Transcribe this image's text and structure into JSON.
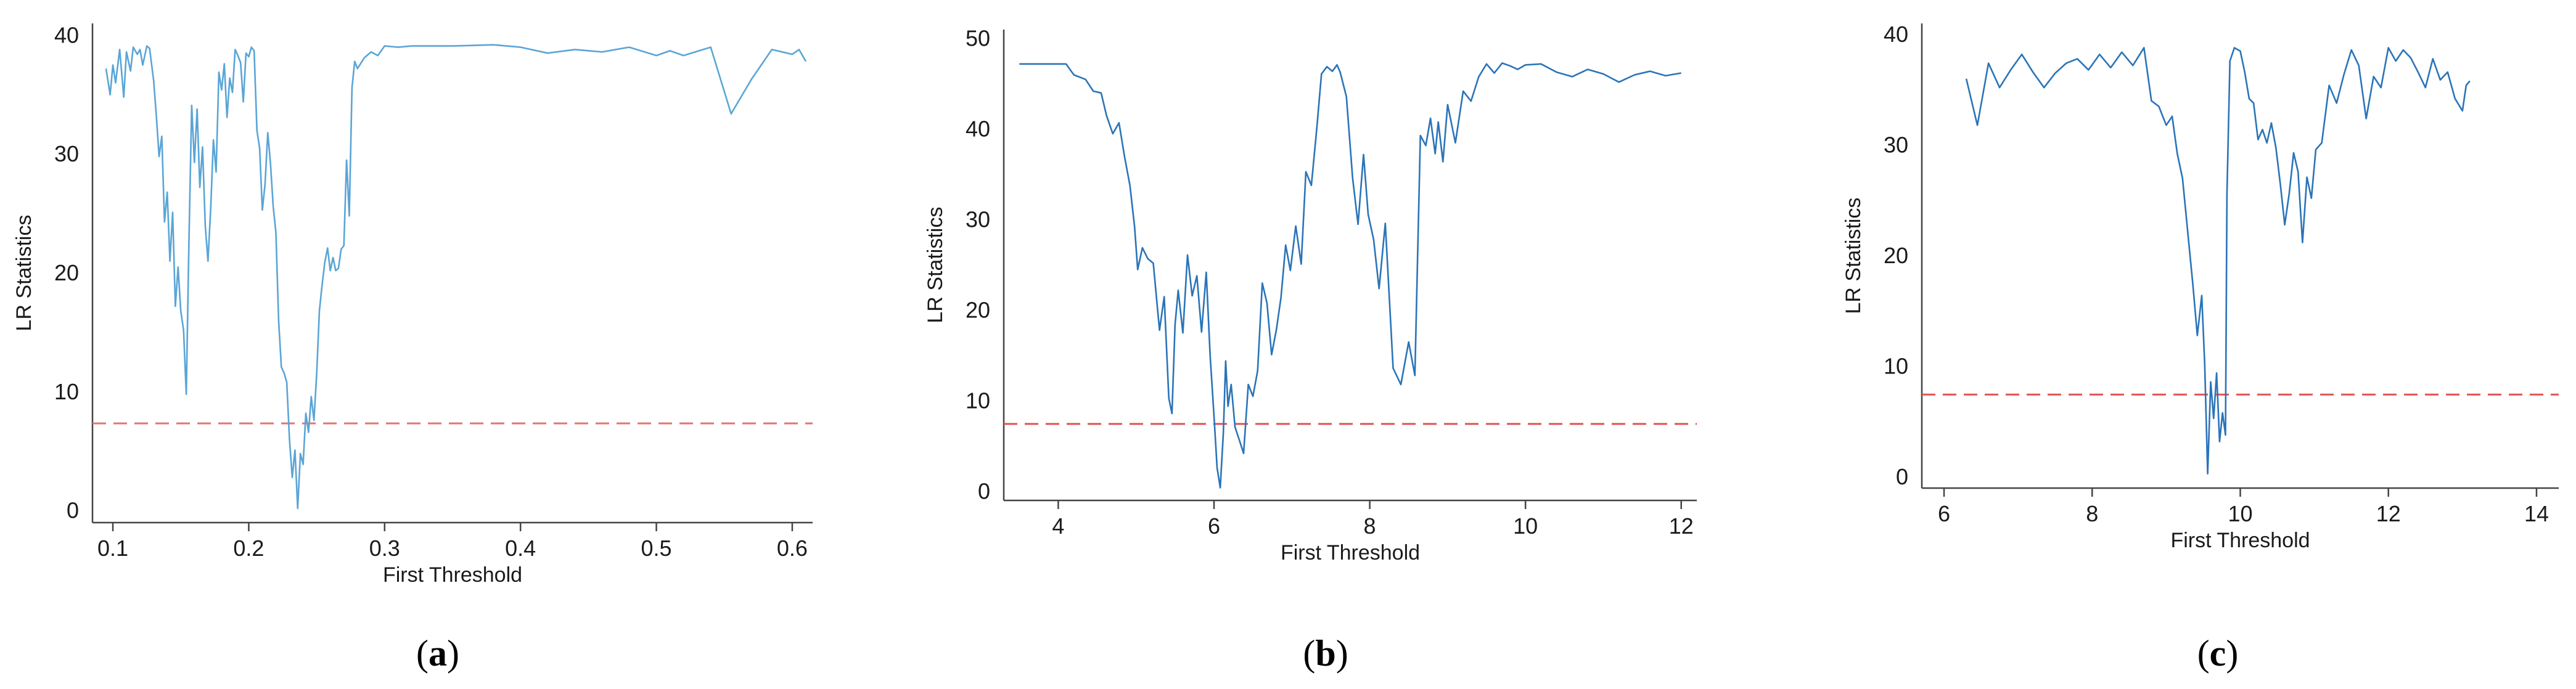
{
  "figure": {
    "panel_labels": [
      "(a)",
      "(b)",
      "(c)"
    ]
  },
  "chart_data": [
    {
      "type": "line",
      "panel": "(a)",
      "xlabel": "First Threshold",
      "ylabel": "LR Statistics",
      "xlim": [
        0.085,
        0.615
      ],
      "ylim": [
        -1,
        41
      ],
      "xticks": [
        0.1,
        0.2,
        0.3,
        0.4,
        0.5,
        0.6
      ],
      "xtick_labels": [
        "0.1",
        "0.2",
        "0.3",
        "0.4",
        "0.5",
        "0.6"
      ],
      "yticks": [
        0,
        10,
        20,
        30,
        40
      ],
      "ytick_labels": [
        "0",
        "10",
        "20",
        "30",
        "40"
      ],
      "line_color": "#5aa5d6",
      "reference_line": {
        "y": 7.35,
        "color": "#e57373",
        "style": "dashed"
      },
      "series": [
        {
          "x": [
            0.095,
            0.098,
            0.1,
            0.102,
            0.105,
            0.108,
            0.11,
            0.113,
            0.115,
            0.118,
            0.12,
            0.122,
            0.125,
            0.127,
            0.13,
            0.132,
            0.134,
            0.136,
            0.138,
            0.14,
            0.142,
            0.144,
            0.146,
            0.148,
            0.15,
            0.152,
            0.154,
            0.156,
            0.158,
            0.16,
            0.162,
            0.164,
            0.166,
            0.168,
            0.17,
            0.172,
            0.174,
            0.176,
            0.178,
            0.18,
            0.182,
            0.184,
            0.186,
            0.188,
            0.19,
            0.192,
            0.194,
            0.196,
            0.198,
            0.2,
            0.202,
            0.204,
            0.206,
            0.208,
            0.21,
            0.212,
            0.214,
            0.216,
            0.218,
            0.22,
            0.222,
            0.224,
            0.226,
            0.228,
            0.23,
            0.232,
            0.234,
            0.236,
            0.238,
            0.24,
            0.242,
            0.244,
            0.246,
            0.248,
            0.25,
            0.252,
            0.254,
            0.256,
            0.258,
            0.26,
            0.262,
            0.264,
            0.266,
            0.268,
            0.27,
            0.272,
            0.274,
            0.276,
            0.278,
            0.28,
            0.285,
            0.29,
            0.295,
            0.3,
            0.31,
            0.32,
            0.33,
            0.35,
            0.38,
            0.4,
            0.42,
            0.44,
            0.46,
            0.48,
            0.5,
            0.51,
            0.52,
            0.54,
            0.555,
            0.57,
            0.585,
            0.6,
            0.605,
            0.61
          ],
          "y": [
            37.2,
            35.0,
            37.5,
            36.0,
            38.8,
            34.8,
            38.6,
            37.0,
            39.0,
            38.4,
            38.8,
            37.5,
            39.1,
            38.9,
            36.2,
            33.2,
            29.8,
            31.5,
            24.3,
            26.8,
            21.0,
            25.1,
            17.2,
            20.5,
            16.8,
            15.2,
            9.8,
            22.8,
            34.1,
            29.3,
            33.8,
            27.2,
            30.6,
            24.0,
            21.0,
            25.4,
            31.2,
            28.5,
            36.9,
            35.4,
            37.6,
            33.1,
            36.4,
            35.2,
            38.8,
            38.3,
            37.7,
            34.4,
            38.5,
            38.2,
            39.0,
            38.7,
            32.0,
            30.5,
            25.3,
            27.5,
            31.8,
            29.2,
            25.6,
            23.4,
            16.0,
            12.1,
            11.6,
            10.8,
            6.0,
            2.8,
            5.1,
            0.2,
            4.8,
            3.9,
            8.2,
            6.6,
            9.6,
            7.6,
            11.5,
            16.8,
            19.0,
            20.9,
            22.1,
            20.2,
            21.3,
            20.2,
            20.4,
            22.0,
            22.3,
            29.5,
            24.8,
            35.6,
            37.8,
            37.2,
            38.1,
            38.6,
            38.3,
            39.1,
            39.0,
            39.1,
            39.1,
            39.1,
            39.2,
            39.0,
            38.5,
            38.8,
            38.6,
            39.0,
            38.3,
            38.7,
            38.3,
            39.0,
            33.4,
            36.3,
            38.8,
            38.4,
            38.8,
            37.8
          ]
        }
      ]
    },
    {
      "type": "line",
      "panel": "(b)",
      "xlabel": "First Threshold",
      "ylabel": "LR Statistics",
      "xlim": [
        3.3,
        12.2
      ],
      "ylim": [
        -1,
        51
      ],
      "xticks": [
        4,
        6,
        8,
        10,
        12
      ],
      "xtick_labels": [
        "4",
        "6",
        "8",
        "10",
        "12"
      ],
      "yticks": [
        0,
        10,
        20,
        30,
        40,
        50
      ],
      "ytick_labels": [
        "0",
        "10",
        "20",
        "30",
        "40",
        "50"
      ],
      "line_color": "#2a74b8",
      "reference_line": {
        "y": 7.45,
        "color": "#e05252",
        "style": "dashed"
      },
      "series": [
        {
          "x": [
            3.5,
            3.8,
            4.1,
            4.2,
            4.35,
            4.45,
            4.55,
            4.62,
            4.7,
            4.78,
            4.85,
            4.92,
            4.98,
            5.02,
            5.08,
            5.15,
            5.22,
            5.3,
            5.36,
            5.42,
            5.46,
            5.5,
            5.54,
            5.6,
            5.66,
            5.72,
            5.78,
            5.84,
            5.9,
            5.95,
            6.0,
            6.04,
            6.08,
            6.12,
            6.15,
            6.18,
            6.22,
            6.27,
            6.32,
            6.38,
            6.44,
            6.5,
            6.56,
            6.62,
            6.68,
            6.74,
            6.8,
            6.86,
            6.92,
            6.98,
            7.05,
            7.12,
            7.18,
            7.25,
            7.32,
            7.38,
            7.45,
            7.52,
            7.58,
            7.62,
            7.7,
            7.78,
            7.85,
            7.92,
            7.98,
            8.05,
            8.12,
            8.2,
            8.3,
            8.4,
            8.5,
            8.58,
            8.65,
            8.72,
            8.78,
            8.84,
            8.88,
            8.94,
            9.0,
            9.1,
            9.2,
            9.3,
            9.4,
            9.5,
            9.6,
            9.7,
            9.8,
            9.9,
            10.0,
            10.2,
            10.4,
            10.6,
            10.8,
            11.0,
            11.2,
            11.4,
            11.6,
            11.8,
            12.0
          ],
          "y": [
            47.2,
            47.2,
            47.2,
            46.0,
            45.5,
            44.2,
            44.0,
            41.5,
            39.5,
            40.7,
            37.0,
            33.8,
            29.2,
            24.5,
            26.9,
            25.7,
            25.2,
            17.8,
            21.5,
            10.3,
            8.6,
            18.4,
            22.2,
            17.5,
            26.1,
            21.6,
            23.8,
            17.6,
            24.2,
            15.0,
            8.3,
            2.6,
            0.4,
            6.4,
            14.4,
            9.4,
            11.8,
            7.1,
            5.8,
            4.2,
            11.8,
            10.5,
            13.3,
            23.0,
            20.8,
            15.1,
            17.8,
            21.4,
            27.2,
            24.4,
            29.3,
            25.1,
            35.3,
            33.8,
            40.1,
            46.1,
            46.9,
            46.4,
            47.1,
            46.3,
            43.6,
            34.6,
            29.5,
            37.2,
            30.6,
            27.8,
            22.4,
            29.6,
            13.6,
            11.8,
            16.5,
            12.8,
            39.3,
            38.2,
            41.2,
            37.3,
            40.8,
            36.4,
            42.7,
            38.5,
            44.2,
            43.1,
            45.8,
            47.2,
            46.2,
            47.3,
            47.0,
            46.6,
            47.1,
            47.2,
            46.3,
            45.8,
            46.6,
            46.1,
            45.2,
            46.0,
            46.4,
            45.9,
            46.2
          ]
        }
      ]
    },
    {
      "type": "line",
      "panel": "(c)",
      "xlabel": "First Threshold",
      "ylabel": "LR Statistics",
      "xlim": [
        5.7,
        14.3
      ],
      "ylim": [
        -1,
        41
      ],
      "xticks": [
        6,
        8,
        10,
        12,
        14
      ],
      "xtick_labels": [
        "6",
        "8",
        "10",
        "12",
        "14"
      ],
      "yticks": [
        0,
        10,
        20,
        30,
        40
      ],
      "ytick_labels": [
        "0",
        "10",
        "20",
        "30",
        "40"
      ],
      "line_color": "#2a74b8",
      "reference_line": {
        "y": 7.45,
        "color": "#e05252",
        "style": "dashed"
      },
      "series": [
        {
          "x": [
            6.3,
            6.45,
            6.6,
            6.75,
            6.9,
            7.05,
            7.2,
            7.35,
            7.5,
            7.65,
            7.8,
            7.95,
            8.1,
            8.25,
            8.4,
            8.55,
            8.7,
            8.8,
            8.9,
            9.0,
            9.08,
            9.15,
            9.22,
            9.3,
            9.36,
            9.42,
            9.48,
            9.52,
            9.56,
            9.6,
            9.64,
            9.68,
            9.72,
            9.76,
            9.8,
            9.82,
            9.86,
            9.92,
            10.0,
            10.06,
            10.12,
            10.18,
            10.24,
            10.3,
            10.36,
            10.42,
            10.48,
            10.54,
            10.6,
            10.66,
            10.72,
            10.78,
            10.84,
            10.9,
            10.96,
            11.02,
            11.1,
            11.2,
            11.3,
            11.4,
            11.5,
            11.6,
            11.7,
            11.8,
            11.9,
            12.0,
            12.1,
            12.2,
            12.3,
            12.4,
            12.5,
            12.6,
            12.7,
            12.8,
            12.9,
            13.0,
            13.05,
            13.1
          ],
          "y": [
            36.0,
            31.8,
            37.4,
            35.2,
            36.8,
            38.2,
            36.6,
            35.2,
            36.5,
            37.4,
            37.8,
            36.8,
            38.2,
            37.0,
            38.4,
            37.2,
            38.8,
            34.0,
            33.5,
            31.8,
            32.6,
            29.2,
            27.0,
            21.5,
            17.4,
            12.8,
            16.4,
            10.2,
            0.3,
            8.6,
            5.3,
            9.4,
            3.2,
            5.8,
            3.8,
            25.6,
            37.6,
            38.8,
            38.5,
            36.6,
            34.2,
            33.8,
            30.5,
            31.4,
            30.2,
            32.0,
            29.8,
            26.5,
            22.8,
            25.6,
            29.3,
            27.6,
            21.2,
            27.1,
            25.2,
            29.6,
            30.2,
            35.4,
            33.8,
            36.4,
            38.6,
            37.2,
            32.4,
            36.2,
            35.2,
            38.8,
            37.6,
            38.6,
            37.9,
            36.6,
            35.2,
            37.8,
            35.9,
            36.6,
            34.2,
            33.1,
            35.4,
            35.8
          ]
        }
      ]
    }
  ]
}
